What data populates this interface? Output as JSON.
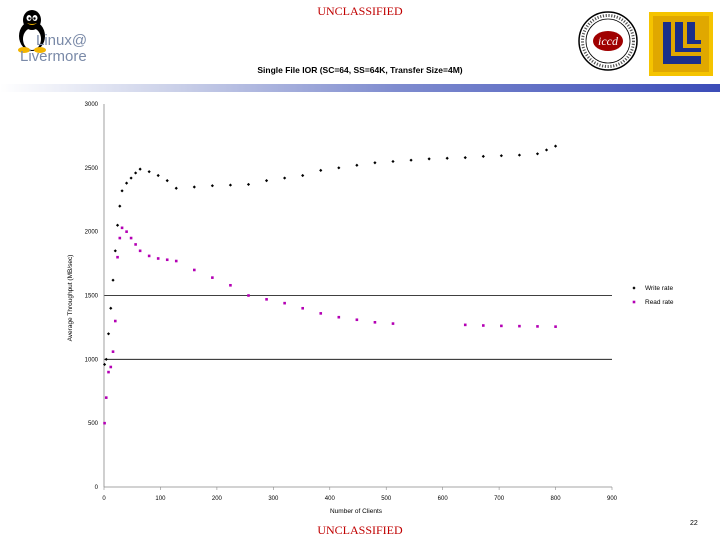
{
  "header": {
    "classification_top": "UNCLASSIFIED",
    "classification_bottom": "UNCLASSIFIED",
    "logo_left": {
      "line1": "Linux@",
      "line2": "Livermore"
    },
    "page_number": "22"
  },
  "colors": {
    "classification": "#c00000",
    "write_series": "#000000",
    "read_series": "#b400b4"
  },
  "chart_data": {
    "type": "scatter",
    "title": "Single File IOR (SC=64, SS=64K, Transfer Size=4M)",
    "xlabel": "Number of Clients",
    "ylabel": "Average Throughput (MB/sec)",
    "xlim": [
      0,
      900
    ],
    "ylim": [
      0,
      3000
    ],
    "xticks": [
      0,
      100,
      200,
      300,
      400,
      500,
      600,
      700,
      800,
      900
    ],
    "yticks": [
      0,
      500,
      1000,
      1500,
      2000,
      2500,
      3000
    ],
    "gridlines_y": [
      1000,
      1500
    ],
    "legend_position": "right",
    "series": [
      {
        "name": "Write rate",
        "marker": "diamond",
        "x": [
          1,
          4,
          8,
          12,
          16,
          20,
          24,
          28,
          32,
          40,
          48,
          56,
          64,
          80,
          96,
          112,
          128,
          160,
          192,
          224,
          256,
          288,
          320,
          352,
          384,
          416,
          448,
          480,
          512,
          544,
          576,
          608,
          640,
          672,
          704,
          736,
          768,
          784,
          800
        ],
        "y": [
          960,
          1000,
          1200,
          1400,
          1620,
          1850,
          2050,
          2200,
          2320,
          2380,
          2420,
          2460,
          2490,
          2470,
          2440,
          2400,
          2340,
          2350,
          2360,
          2365,
          2370,
          2400,
          2420,
          2440,
          2480,
          2500,
          2520,
          2540,
          2550,
          2560,
          2570,
          2575,
          2580,
          2590,
          2595,
          2600,
          2610,
          2640,
          2670
        ]
      },
      {
        "name": "Read rate",
        "marker": "square",
        "x": [
          1,
          4,
          8,
          12,
          16,
          20,
          24,
          28,
          32,
          40,
          48,
          56,
          64,
          80,
          96,
          112,
          128,
          160,
          192,
          224,
          256,
          288,
          320,
          352,
          384,
          416,
          448,
          480,
          512,
          640,
          672,
          704,
          736,
          768,
          800
        ],
        "y": [
          500,
          700,
          900,
          940,
          1060,
          1300,
          1800,
          1950,
          2030,
          2000,
          1950,
          1900,
          1850,
          1810,
          1790,
          1780,
          1770,
          1700,
          1640,
          1580,
          1500,
          1470,
          1440,
          1400,
          1360,
          1330,
          1310,
          1290,
          1280,
          1270,
          1265,
          1262,
          1260,
          1258,
          1256
        ]
      }
    ]
  }
}
